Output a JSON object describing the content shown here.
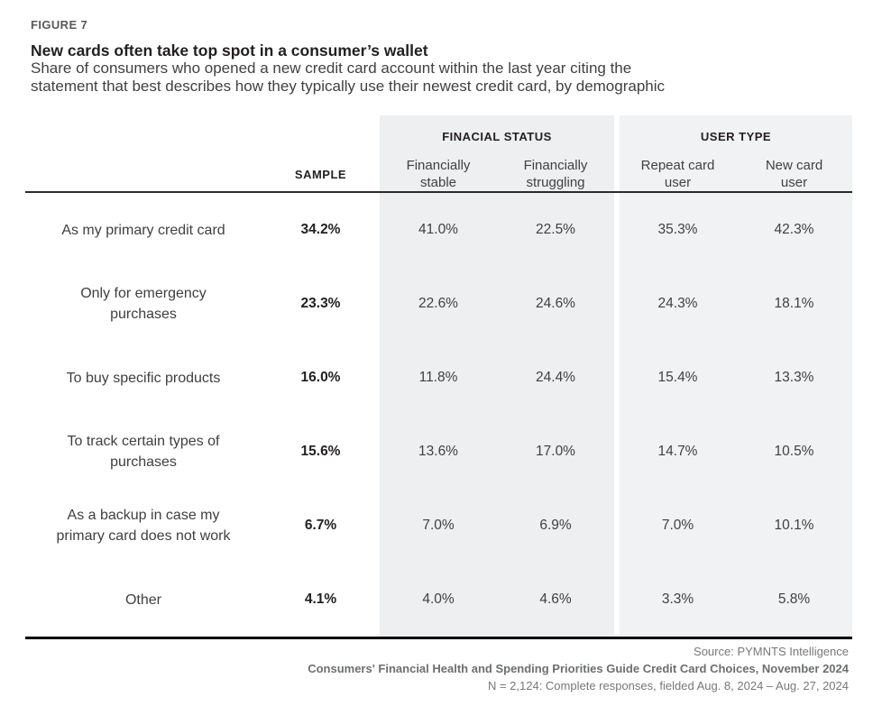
{
  "figure_label": "FIGURE 7",
  "title": "New cards often take top spot in a consumer’s wallet",
  "subtitle_lines": [
    "Share of consumers who opened a new credit card account within the last year citing the",
    "statement that best describes how they typically use their newest credit card, by demographic"
  ],
  "colors": {
    "financial_status_shade": "#edeff0",
    "user_type_shade": "#f1f2f3",
    "rule_top": "#2b2b2b",
    "rule_bottom": "#000000"
  },
  "table": {
    "group_headers": {
      "financial_status": "FINACIAL STATUS",
      "user_type": "USER TYPE"
    },
    "column_headers": {
      "sample": "SAMPLE",
      "financially_stable": "Financially stable",
      "financially_struggling": "Financially struggling",
      "repeat_card_user": "Repeat card user",
      "new_card_user": "New card user"
    },
    "rows": [
      {
        "label": "As my primary credit card",
        "values": [
          "34.2%",
          "41.0%",
          "22.5%",
          "35.3%",
          "42.3%"
        ]
      },
      {
        "label": "Only for emergency purchases",
        "values": [
          "23.3%",
          "22.6%",
          "24.6%",
          "24.3%",
          "18.1%"
        ]
      },
      {
        "label": "To buy specific products",
        "values": [
          "16.0%",
          "11.8%",
          "24.4%",
          "15.4%",
          "13.3%"
        ]
      },
      {
        "label": "To track certain types of purchases",
        "values": [
          "15.6%",
          "13.6%",
          "17.0%",
          "14.7%",
          "10.5%"
        ]
      },
      {
        "label": "As a backup in case my primary card does not work",
        "values": [
          "6.7%",
          "7.0%",
          "6.9%",
          "7.0%",
          "10.1%"
        ]
      },
      {
        "label": "Other",
        "values": [
          "4.1%",
          "4.0%",
          "4.6%",
          "3.3%",
          "5.8%"
        ]
      }
    ]
  },
  "footer": {
    "source": "Source: PYMNTS Intelligence",
    "report": "Consumers' Financial Health and Spending Priorities Guide Credit Card Choices, November 2024",
    "sample_note": "N = 2,124: Complete responses, fielded Aug. 8, 2024 – Aug. 27, 2024"
  },
  "chart_data": {
    "type": "table",
    "title": "New cards often take top spot in a consumer's wallet",
    "unit": "%",
    "categories": [
      "As my primary credit card",
      "Only for emergency purchases",
      "To buy specific products",
      "To track certain types of purchases",
      "As a backup in case my primary card does not work",
      "Other"
    ],
    "series": [
      {
        "name": "Sample",
        "values": [
          34.2,
          23.3,
          16.0,
          15.6,
          6.7,
          4.1
        ]
      },
      {
        "name": "Financially stable",
        "values": [
          41.0,
          22.6,
          11.8,
          13.6,
          7.0,
          4.0
        ]
      },
      {
        "name": "Financially struggling",
        "values": [
          22.5,
          24.6,
          24.4,
          17.0,
          6.9,
          4.6
        ]
      },
      {
        "name": "Repeat card user",
        "values": [
          35.3,
          24.3,
          15.4,
          14.7,
          7.0,
          3.3
        ]
      },
      {
        "name": "New card user",
        "values": [
          42.3,
          18.1,
          13.3,
          10.5,
          10.1,
          5.8
        ]
      }
    ]
  }
}
